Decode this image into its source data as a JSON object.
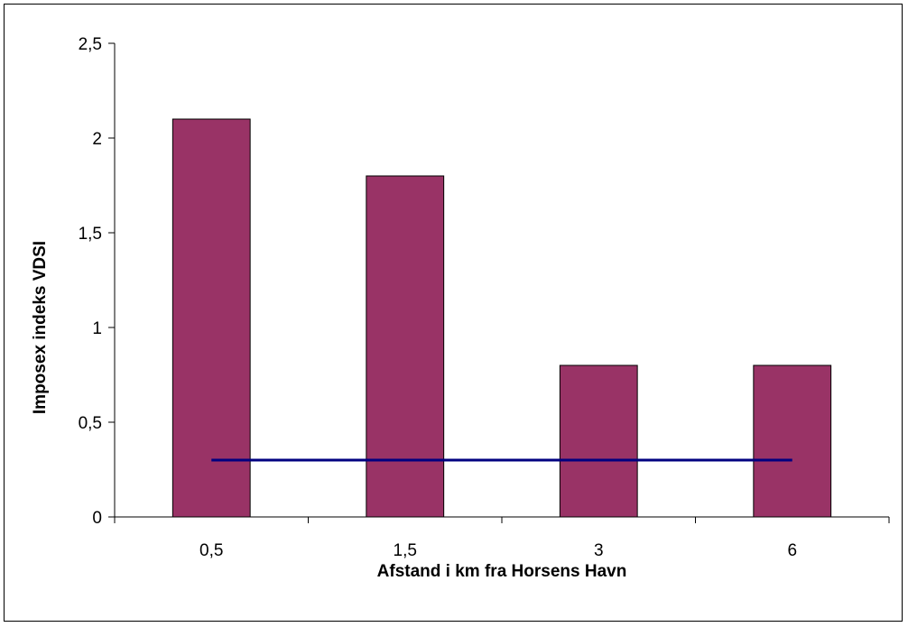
{
  "chart_data": {
    "type": "bar",
    "title": "",
    "xlabel": "Afstand i km fra Horsens Havn",
    "ylabel": "Imposex indeks VDSI",
    "categories": [
      "0,5",
      "1,5",
      "3",
      "6"
    ],
    "values": [
      2.1,
      1.8,
      0.8,
      0.8
    ],
    "reference_line": {
      "value": 0.3,
      "color": "#000080"
    },
    "ylim": [
      0,
      2.5
    ],
    "yticks": [
      0,
      0.5,
      1,
      1.5,
      2,
      2.5
    ],
    "ytick_labels": [
      "0",
      "0,5",
      "1",
      "1,5",
      "2",
      "2,5"
    ],
    "bar_color": "#993366",
    "grid": false,
    "legend": "none"
  }
}
